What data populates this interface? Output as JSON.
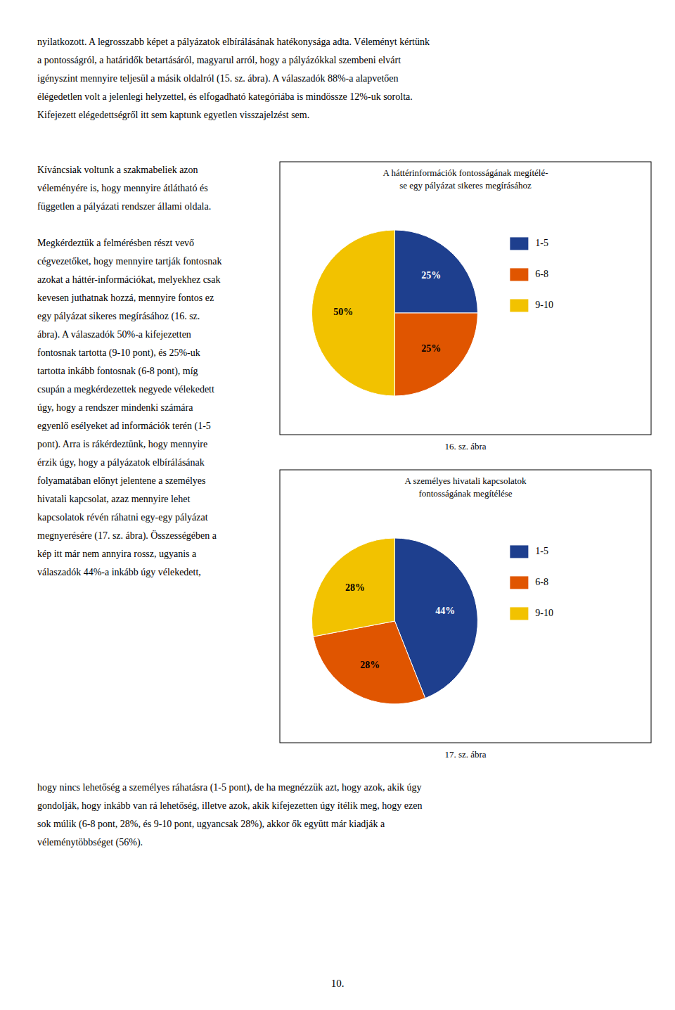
{
  "top_text": "nyilatkozott. A legrosszabb képet a pályázatok elbírálásának hatékonysága adta. Véleményt kértünk\na pontosságról, a határidők betartásáról, magyarul arról, hogy a pályázókkal szembeni elvárt\nigényszint mennyire teljesül a másik oldalról (15. sz. ábra). A válaszadók 88%-a alapvetően\nélégedetlen volt a jelenlegi helyzettel, és elfogadható kategóriába is mindössze 12%-uk sorolta.\nKifejezett elégedettségről itt sem kaptunk egyetlen visszajelzést sem.",
  "left_col_text": "Kíváncsiak voltunk a szakmabeliek azon\nvéleményére is, hogy mennyire átlátható és\nfüggetlen a pályázati rendszer állami oldala.\n\nMegkérdeztük a felmérésben részt vevő\ncégvezetőket, hogy mennyire tartják fontosnak\nazokat a háttér-információkat, melyekhez csak\nkevesen juthatnak hozzá, mennyire fontos ez\negy pályázat sikeres megírásához (16. sz.\nábra). A válaszadók 50%-a kifejezetten\nfontosnak tartotta (9-10 pont), és 25%-uk\ntartotta inkább fontosnak (6-8 pont), míg\ncsupán a megkérdezettek negyede vélekedett\núgy, hogy a rendszer mindenki számára\negyenlő esélyeket ad információk terén (1-5\npont). Arra is rákérdeztünk, hogy mennyire\nérzik úgy, hogy a pályázatok elbírálásának\nfolyamatában előnyt jelentene a személyes\nhivatali kapcsolat, azaz mennyire lehet\nkapcsolatok révén ráhatni egy-egy pályázat\nmegnyerésére (17. sz. ábra). Összességében a\nkép itt már nem annyira rossz, ugyanis a\nválaszadók 44%-a inkább úgy vélekedett,",
  "bottom_text": "hogy nincs lehetőség a személyes ráhatásra (1-5 pont), de ha megnézzük azt, hogy azok, akik úgy\ngondolják, hogy inkább van rá lehetőség, illetve azok, akik kifejezetten úgy ítélik meg, hogy ezen\nsok múlik (6-8 pont, 28%, és 9-10 pont, ugyancsak 28%), akkor ők együtt már kiadják a\nvéleménytöbbséget (56%).",
  "page_number": "10.",
  "chart_data": [
    {
      "type": "pie",
      "title": "A háttérinformációk fontosságának megítélé-\nse egy pályázat sikeres megírásához",
      "caption": "16. sz. ábra",
      "categories": [
        "1-5",
        "6-8",
        "9-10"
      ],
      "values": [
        25,
        25,
        50
      ],
      "value_labels": [
        "25%",
        "25%",
        "50%"
      ],
      "colors": [
        "#1e3f8e",
        "#e05500",
        "#f2c200"
      ],
      "data_labels": true,
      "legend": "right"
    },
    {
      "type": "pie",
      "title": "A személyes hivatali kapcsolatok\nfontosságának megítélése",
      "caption": "17. sz. ábra",
      "categories": [
        "1-5",
        "6-8",
        "9-10"
      ],
      "values": [
        44,
        28,
        28
      ],
      "value_labels": [
        "44%",
        "28%",
        "28%"
      ],
      "colors": [
        "#1e3f8e",
        "#e05500",
        "#f2c200"
      ],
      "data_labels": true,
      "legend": "right"
    }
  ]
}
